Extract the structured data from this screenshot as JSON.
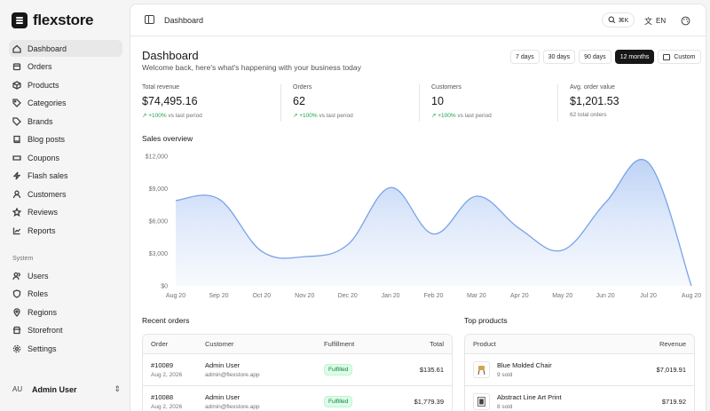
{
  "brand": {
    "name": "flexstore"
  },
  "nav": [
    {
      "label": "Dashboard",
      "icon": "home-icon",
      "active": true
    },
    {
      "label": "Orders",
      "icon": "box-icon"
    },
    {
      "label": "Products",
      "icon": "package-icon"
    },
    {
      "label": "Categories",
      "icon": "tags-icon"
    },
    {
      "label": "Brands",
      "icon": "tag-icon"
    },
    {
      "label": "Blog posts",
      "icon": "book-icon"
    },
    {
      "label": "Coupons",
      "icon": "ticket-icon"
    },
    {
      "label": "Flash sales",
      "icon": "flash-icon"
    },
    {
      "label": "Customers",
      "icon": "user-icon"
    },
    {
      "label": "Reviews",
      "icon": "star-icon"
    },
    {
      "label": "Reports",
      "icon": "chart-icon"
    }
  ],
  "system": {
    "label": "System",
    "items": [
      {
        "label": "Users",
        "icon": "users-icon"
      },
      {
        "label": "Roles",
        "icon": "shield-icon"
      },
      {
        "label": "Regions",
        "icon": "pin-icon"
      },
      {
        "label": "Storefront",
        "icon": "store-icon"
      },
      {
        "label": "Settings",
        "icon": "gear-icon"
      }
    ]
  },
  "user": {
    "initials": "AU",
    "name": "Admin User"
  },
  "topbar": {
    "breadcrumb": "Dashboard",
    "search_shortcut": "⌘K",
    "language": "EN"
  },
  "page": {
    "title": "Dashboard",
    "subtitle": "Welcome back, here's what's happening with your business today"
  },
  "ranges": [
    {
      "label": "7 days"
    },
    {
      "label": "30 days"
    },
    {
      "label": "90 days"
    },
    {
      "label": "12 months",
      "active": true
    },
    {
      "label": "Custom"
    }
  ],
  "stats": [
    {
      "label": "Total revenue",
      "value": "$74,495.16",
      "delta": "+100%",
      "note": "vs last period"
    },
    {
      "label": "Orders",
      "value": "62",
      "delta": "+100%",
      "note": "vs last period"
    },
    {
      "label": "Customers",
      "value": "10",
      "delta": "+100%",
      "note": "vs last period"
    },
    {
      "label": "Avg. order value",
      "value": "$1,201.53",
      "delta": "",
      "note": "62 total orders"
    }
  ],
  "chart_data": {
    "type": "area",
    "title": "Sales overview",
    "x": [
      "Aug 20",
      "Sep 20",
      "Oct 20",
      "Nov 20",
      "Dec 20",
      "Jan 20",
      "Feb 20",
      "Mar 20",
      "Apr 20",
      "May 20",
      "Jun 20",
      "Jul 20",
      "Aug 20"
    ],
    "values": [
      7900,
      8050,
      3200,
      2700,
      3800,
      9100,
      4800,
      8300,
      5300,
      3300,
      7700,
      11400,
      0
    ],
    "yticks": [
      "$0",
      "$3,000",
      "$6,000",
      "$9,000",
      "$12,000"
    ],
    "ylim": [
      0,
      12000
    ],
    "grid": false,
    "colors": {
      "line": "#7aa2e8",
      "fill": "#c7d9f7"
    }
  },
  "recent_orders": {
    "title": "Recent orders",
    "columns": [
      "Order",
      "Customer",
      "Fulfillment",
      "Total"
    ],
    "rows": [
      {
        "order": "#10089",
        "date": "Aug 2, 2026",
        "customer": "Admin User",
        "email": "admin@flexstore.app",
        "status": "Fulfilled",
        "total": "$135.61"
      },
      {
        "order": "#10088",
        "date": "Aug 2, 2026",
        "customer": "Admin User",
        "email": "admin@flexstore.app",
        "status": "Fulfilled",
        "total": "$1,779.39"
      }
    ]
  },
  "top_products": {
    "title": "Top products",
    "columns": [
      "Product",
      "Revenue"
    ],
    "rows": [
      {
        "name": "Blue Molded Chair",
        "sold": "9 sold",
        "revenue": "$7,019.91"
      },
      {
        "name": "Abstract Line Art Print",
        "sold": "8 sold",
        "revenue": "$719.92"
      }
    ]
  }
}
